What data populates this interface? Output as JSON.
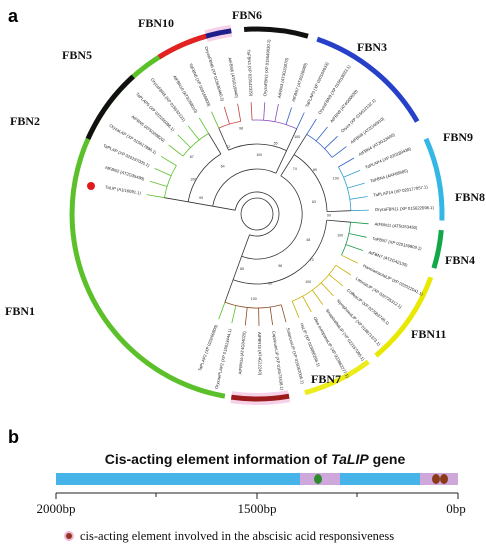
{
  "panel_a": {
    "label": "a",
    "clades": [
      {
        "name": "FBN10",
        "color": "#1f1f8a"
      },
      {
        "name": "FBN6",
        "color": "#111111"
      },
      {
        "name": "FBN3",
        "color": "#2740c8"
      },
      {
        "name": "FBN9",
        "color": "#35b7e6"
      },
      {
        "name": "FBN8",
        "color": "#12a84a"
      },
      {
        "name": "FBN4",
        "color": "#e8e800"
      },
      {
        "name": "FBN11",
        "color": "#ecec1a"
      },
      {
        "name": "FBN7",
        "color": "#9b1b1b"
      },
      {
        "name": "FBN1",
        "color": "#5cc02a"
      },
      {
        "name": "FBN2",
        "color": "#111111"
      },
      {
        "name": "FBN5",
        "color": "#e52222"
      }
    ],
    "leaves": [
      "TaLIP (A1I16091.1)",
      "AtFBN2 (AT2G35490)",
      "TaPLAP (XP 020197005.1)",
      "OryzaLAP (XP 015617996.1)",
      "AtFBN5 (AT5G09820)",
      "TaPLAP5 (XP 020165086.1)",
      "OryzaFBN5 (XP 015632131)",
      "AtFBN10 (AT3G58010)",
      "TaFBN6 (XP 020165809)",
      "OryzaFBN6 (XP 015639460.1)",
      "AtFBN6 (AT5G19940)",
      "TaFBN3 (XP 020142329)",
      "OryzaFBN3 (XP 015649030.1)",
      "AtFBN3 (AT3G26070)",
      "AtFBN7 (AT3G26080)",
      "TaPLAP3 (XP 020164633)",
      "OryzaFBN9 (XP 015619033.1)",
      "AtFBN9 (AT4G00030)",
      "Oryza (XP 015612132.1)",
      "AtFBN8 (AT2G46910)",
      "AtFBN4 (AT3G23400)",
      "TaPLAP4 (XP 020189438)",
      "TaFBN4 (AAF68585)",
      "TaPLAP14 (XP 020177057.1)",
      "OryzaFBN11 (XP 015622698.1)",
      "AtFBN11 (AT5G53450)",
      "TaFBN7 (XP 020159809.1)",
      "AtFBN7 (AT2G42130)",
      "HarmiamaulaLIP (XP 022022041.1)",
      "LotusaLIP (XP 022735312.1)",
      "CoffeaLIP (XP 027083748.1)",
      "NymphaeaLIP (XP 018871373.1)",
      "SinapisalbaLIP (XP 022157095.1)",
      "Olea europaeaLIP (XP 022862277.1)",
      "HsLIP (XP 019080268.1)",
      "SolanumLIP (XP 015062006.1)",
      "CapsicumLIP (XP 016573438.1)",
      "AtFBN1b (AT4G22240)",
      "AtFBN1a (AT4G04020)",
      "OryzaePLAP2 (XP 015613444.1)",
      "TaPLAP2 (XP 020200800)"
    ],
    "bootstrap": [
      "99",
      "100",
      "87",
      "64",
      "72",
      "98",
      "100",
      "55",
      "100",
      "74",
      "89",
      "100",
      "63",
      "99",
      "100",
      "48",
      "73",
      "100",
      "98",
      "62",
      "100",
      "85"
    ]
  },
  "panel_b": {
    "label": "b",
    "title_prefix": "Cis-acting element information of ",
    "title_gene": "TaLIP",
    "title_suffix": " gene",
    "bar_color": "#3dafe6",
    "element_color": "#8b3a1a",
    "ticks": [
      "2000bp",
      "1500bp",
      "1000bp",
      "500bp",
      "0bp"
    ],
    "ticks_shown": [
      "2000bp",
      "1500bp",
      "0bp"
    ],
    "legend_text": "cis-acting element involved in the abscisic acid responsiveness"
  }
}
